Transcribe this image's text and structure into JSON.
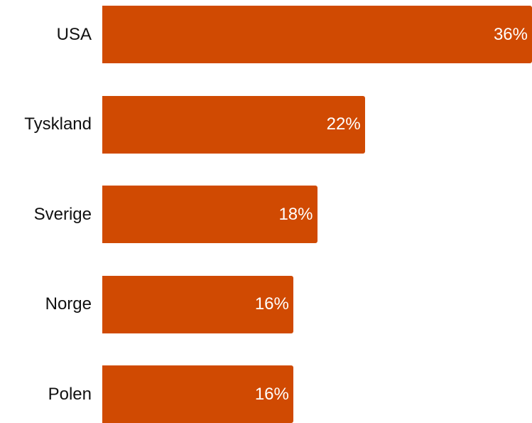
{
  "chart_data": {
    "type": "bar",
    "orientation": "horizontal",
    "categories": [
      "USA",
      "Tyskland",
      "Sverige",
      "Norge",
      "Polen"
    ],
    "values": [
      36,
      22,
      18,
      16,
      16
    ],
    "value_labels": [
      "36%",
      "22%",
      "18%",
      "16%",
      "16%"
    ],
    "xlim": [
      0,
      36
    ],
    "bar_color": "#d04a02",
    "label_color": "#ffffff",
    "grid": false,
    "legend": "none"
  }
}
